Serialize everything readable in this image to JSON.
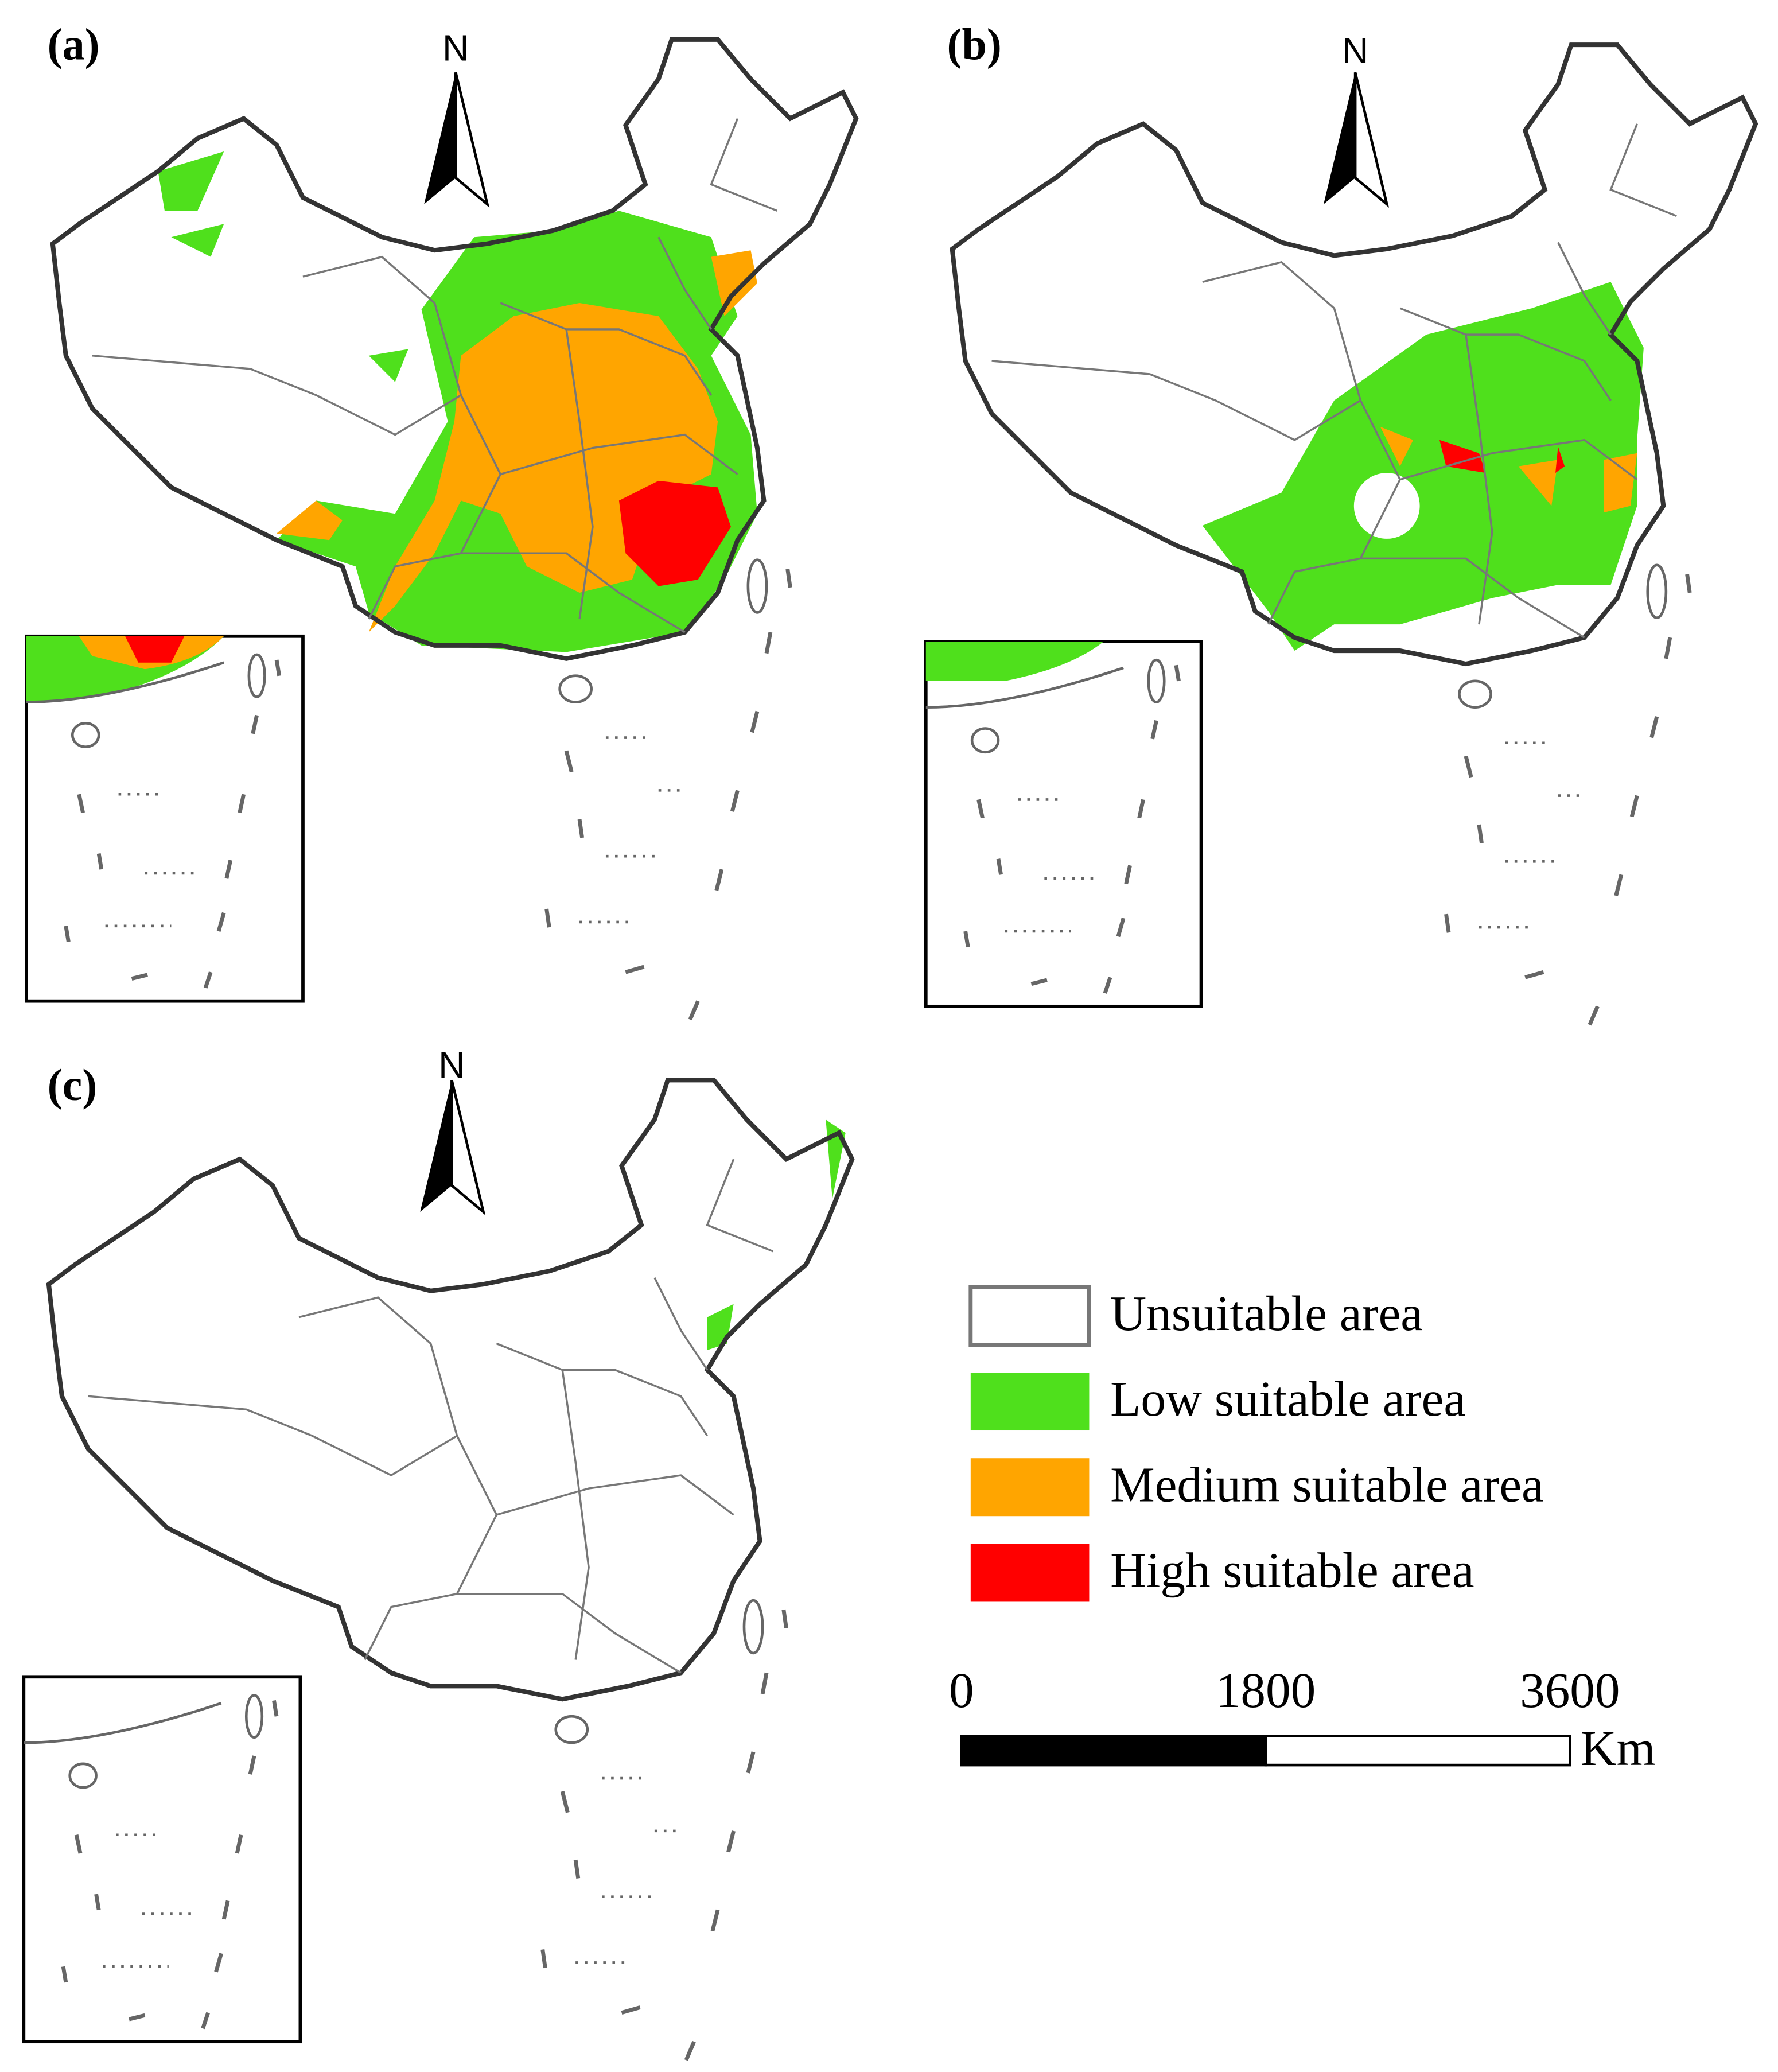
{
  "panels": [
    {
      "label": "(a)",
      "north": "N"
    },
    {
      "label": "(b)",
      "north": "N"
    },
    {
      "label": "(c)",
      "north": "N"
    }
  ],
  "legend": {
    "items": [
      {
        "label": "Unsuitable area",
        "color": "#ffffff"
      },
      {
        "label": "Low suitable area",
        "color": "#4fe01c"
      },
      {
        "label": "Medium suitable area",
        "color": "#ffa500"
      },
      {
        "label": "High suitable area",
        "color": "#ff0000"
      }
    ]
  },
  "scale_bar": {
    "ticks": [
      0,
      1800,
      3600
    ],
    "unit": "Km"
  }
}
